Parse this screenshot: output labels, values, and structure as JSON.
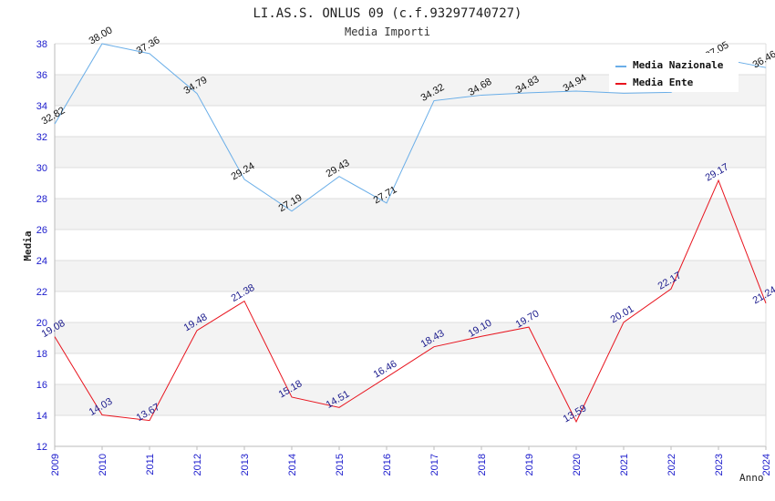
{
  "chart_data": {
    "type": "line",
    "title": "LI.AS.S. ONLUS 09 (c.f.93297740727)",
    "subtitle": "Media Importi",
    "xlabel": "Anno",
    "ylabel": "Media",
    "ylim": [
      12,
      38
    ],
    "yticks": [
      12,
      14,
      16,
      18,
      20,
      22,
      24,
      26,
      28,
      30,
      32,
      34,
      36,
      38
    ],
    "x": [
      "2009",
      "2010",
      "2011",
      "2012",
      "2013",
      "2014",
      "2015",
      "2016",
      "2017",
      "2018",
      "2019",
      "2020",
      "2021",
      "2022",
      "2023",
      "2024"
    ],
    "legend_position": "top-right",
    "series": [
      {
        "name": "Media Nazionale",
        "color": "#6aaee8",
        "values": [
          32.82,
          38.0,
          37.36,
          34.79,
          29.24,
          27.19,
          29.43,
          27.71,
          34.32,
          34.68,
          34.83,
          34.94,
          34.8,
          34.86,
          37.05,
          36.46
        ],
        "labels": [
          "32.82",
          "38.00",
          "37.36",
          "34.79",
          "29.24",
          "27.19",
          "29.43",
          "27.71",
          "34.32",
          "34.68",
          "34.83",
          "34.94",
          "",
          "",
          "37.05",
          "36.46"
        ]
      },
      {
        "name": "Media Ente",
        "color": "#e8141e",
        "values": [
          19.08,
          14.03,
          13.67,
          19.48,
          21.38,
          15.18,
          14.51,
          16.46,
          18.43,
          19.1,
          19.7,
          13.59,
          20.01,
          22.17,
          29.17,
          21.24
        ],
        "labels": [
          "19.08",
          "14.03",
          "13.67",
          "19.48",
          "21.38",
          "15.18",
          "14.51",
          "16.46",
          "18.43",
          "19.10",
          "19.70",
          "13.59",
          "20.01",
          "22.17",
          "29.17",
          "21.24"
        ]
      }
    ]
  }
}
